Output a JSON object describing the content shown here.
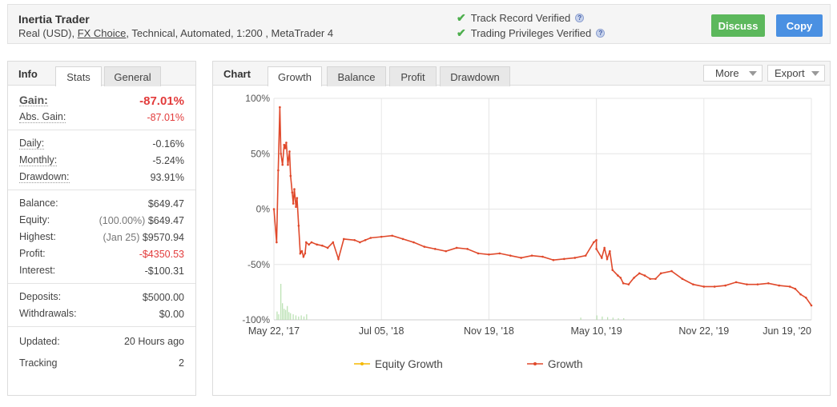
{
  "header": {
    "title": "Inertia Trader",
    "sub_prefix": "Real (USD), ",
    "broker": "FX Choice",
    "sub_suffix": ", Technical, Automated, 1:200 , MetaTrader 4",
    "verified_1": "Track Record Verified",
    "verified_2": "Trading Privileges Verified",
    "discuss_label": "Discuss",
    "copy_label": "Copy"
  },
  "info_panel": {
    "title": "Info",
    "tabs": [
      "Stats",
      "General"
    ],
    "gain_label": "Gain:",
    "gain_value": "-87.01%",
    "abs_gain_label": "Abs. Gain:",
    "abs_gain_value": "-87.01%",
    "daily_label": "Daily:",
    "daily_value": "-0.16%",
    "monthly_label": "Monthly:",
    "monthly_value": "-5.24%",
    "drawdown_label": "Drawdown:",
    "drawdown_value": "93.91%",
    "balance_label": "Balance:",
    "balance_value": "$649.47",
    "equity_label": "Equity:",
    "equity_pct": "(100.00%)",
    "equity_value": "$649.47",
    "highest_label": "Highest:",
    "highest_date": "(Jan 25)",
    "highest_value": "$9570.94",
    "profit_label": "Profit:",
    "profit_value": "-$4350.53",
    "interest_label": "Interest:",
    "interest_value": "-$100.31",
    "deposits_label": "Deposits:",
    "deposits_value": "$5000.00",
    "withdrawals_label": "Withdrawals:",
    "withdrawals_value": "$0.00",
    "updated_label": "Updated:",
    "updated_value": "20 Hours ago",
    "tracking_label": "Tracking",
    "tracking_value": "2"
  },
  "chart_panel": {
    "title": "Chart",
    "tabs": [
      "Growth",
      "Balance",
      "Profit",
      "Drawdown"
    ],
    "more_label": "More",
    "export_label": "Export"
  },
  "chart_data": {
    "type": "line",
    "ylim": [
      -100,
      100
    ],
    "y_ticks": [
      100,
      50,
      0,
      -50,
      -100
    ],
    "y_tick_labels": [
      "100%",
      "50%",
      "0%",
      "-50%",
      "-100%"
    ],
    "x_tick_labels": [
      "May 22, '17",
      "Jul 05, '18",
      "Nov 19, '18",
      "May 10, '19",
      "Nov 22, '19",
      "Jun 19, '20"
    ],
    "grid": true,
    "legend_position": "bottom",
    "series": [
      {
        "name": "Growth",
        "color": "#e0492b",
        "x": [
          0,
          0.005,
          0.008,
          0.011,
          0.013,
          0.016,
          0.019,
          0.021,
          0.023,
          0.026,
          0.029,
          0.031,
          0.034,
          0.036,
          0.038,
          0.041,
          0.043,
          0.046,
          0.049,
          0.052,
          0.055,
          0.058,
          0.06,
          0.065,
          0.07,
          0.08,
          0.09,
          0.1,
          0.11,
          0.12,
          0.13,
          0.15,
          0.16,
          0.17,
          0.18,
          0.2,
          0.22,
          0.24,
          0.26,
          0.28,
          0.3,
          0.32,
          0.34,
          0.36,
          0.38,
          0.4,
          0.42,
          0.44,
          0.46,
          0.48,
          0.5,
          0.52,
          0.54,
          0.56,
          0.58,
          0.595,
          0.6,
          0.6,
          0.61,
          0.615,
          0.62,
          0.625,
          0.63,
          0.64,
          0.645,
          0.65,
          0.66,
          0.67,
          0.68,
          0.69,
          0.7,
          0.71,
          0.72,
          0.74,
          0.76,
          0.78,
          0.8,
          0.82,
          0.84,
          0.86,
          0.88,
          0.9,
          0.92,
          0.94,
          0.96,
          0.97,
          0.98,
          0.99,
          1.0
        ],
        "values": [
          0,
          -30,
          35,
          92,
          50,
          40,
          58,
          55,
          60,
          40,
          52,
          30,
          15,
          5,
          18,
          2,
          10,
          -15,
          -40,
          -38,
          -43,
          -40,
          -30,
          -32,
          -30,
          -32,
          -33,
          -35,
          -30,
          -45,
          -27,
          -28,
          -30,
          -28,
          -26,
          -25,
          -24,
          -27,
          -30,
          -34,
          -36,
          -38,
          -35,
          -36,
          -40,
          -41,
          -40,
          -42,
          -44,
          -42,
          -43,
          -46,
          -45,
          -44,
          -42,
          -30,
          -28,
          -36,
          -44,
          -35,
          -45,
          -38,
          -55,
          -60,
          -62,
          -67,
          -68,
          -62,
          -58,
          -60,
          -63,
          -63,
          -58,
          -56,
          -63,
          -68,
          -70,
          -70,
          -69,
          -66,
          -68,
          -68,
          -67,
          -69,
          -70,
          -72,
          -77,
          -80,
          -87
        ]
      },
      {
        "name": "Equity Growth",
        "color": "#f5b800",
        "x": [],
        "values": []
      }
    ],
    "volume_bars": {
      "x": [
        0.005,
        0.008,
        0.012,
        0.015,
        0.018,
        0.021,
        0.024,
        0.027,
        0.03,
        0.035,
        0.04,
        0.045,
        0.05,
        0.055,
        0.06,
        0.57,
        0.6,
        0.61,
        0.62,
        0.63,
        0.64,
        0.65
      ],
      "values": [
        15,
        10,
        65,
        30,
        20,
        18,
        25,
        14,
        12,
        10,
        8,
        6,
        8,
        6,
        10,
        4,
        8,
        6,
        5,
        4,
        3,
        3
      ]
    }
  }
}
